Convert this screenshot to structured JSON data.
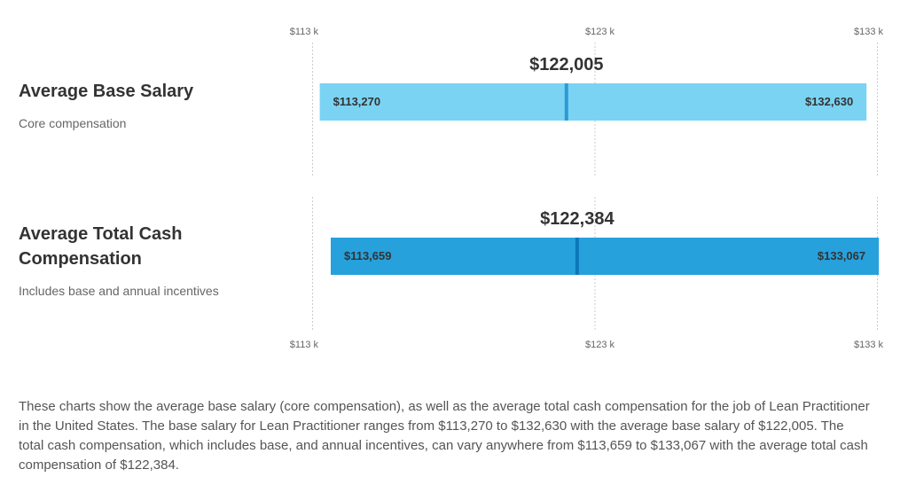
{
  "chart_data": {
    "type": "bar",
    "axis": {
      "min": 113000,
      "max": 133000,
      "ticks": [
        113000,
        123000,
        133000
      ],
      "tick_labels": [
        "$113 k",
        "$123 k",
        "$133 k"
      ]
    },
    "grid": true,
    "series": [
      {
        "id": "base",
        "name": "Average Base Salary",
        "subtitle": "Core compensation",
        "min": 113270,
        "max": 132630,
        "average": 122005,
        "min_label": "$113,270",
        "max_label": "$132,630",
        "average_label": "$122,005",
        "color": "#7bd3f3",
        "marker_color": "#2a9bd5"
      },
      {
        "id": "total",
        "name": "Average Total Cash Compensation",
        "name_lines": [
          "Average Total Cash",
          "Compensation"
        ],
        "subtitle": "Includes base and annual incentives",
        "min": 113659,
        "max": 133067,
        "average": 122384,
        "min_label": "$113,659",
        "max_label": "$133,067",
        "average_label": "$122,384",
        "color": "#26a1dc",
        "marker_color": "#0d76bb"
      }
    ]
  },
  "description": "These charts show the average base salary (core compensation), as well as the average total cash compensation for the job of Lean Practitioner in the United States. The base salary for Lean Practitioner ranges from $113,270 to $132,630 with the average base salary of $122,005. The total cash compensation, which includes base, and annual incentives, can vary anywhere from $113,659 to $133,067 with the average total cash compensation of $122,384."
}
